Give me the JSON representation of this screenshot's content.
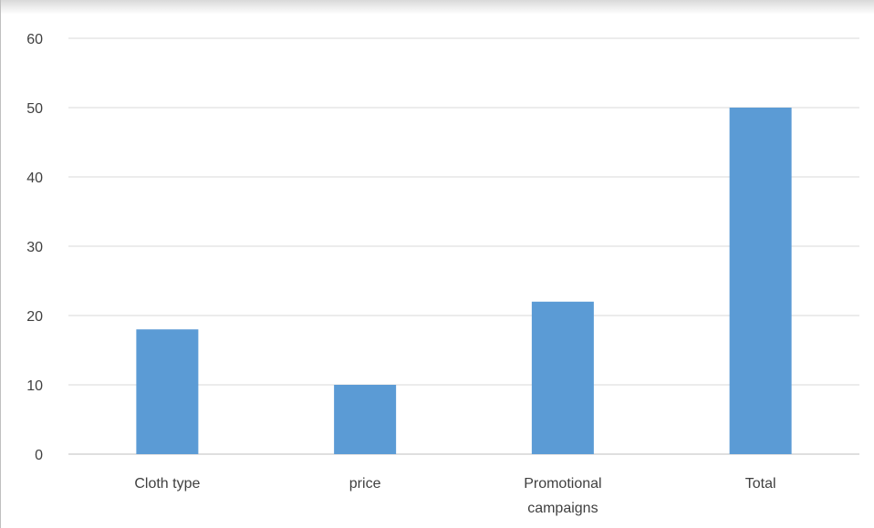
{
  "chart_data": {
    "type": "bar",
    "categories": [
      "Cloth type",
      "price",
      "Promotional campaigns",
      "Total"
    ],
    "values": [
      18,
      10,
      22,
      50
    ],
    "title": "",
    "xlabel": "",
    "ylabel": "",
    "ylim": [
      0,
      60
    ],
    "yticks": [
      "0",
      "10",
      "20",
      "30",
      "40",
      "50",
      "60"
    ],
    "grid": true,
    "legend": "none",
    "bar_color": "#5b9bd5",
    "grid_color": "#d9d9d9",
    "text_color": "#404040"
  }
}
